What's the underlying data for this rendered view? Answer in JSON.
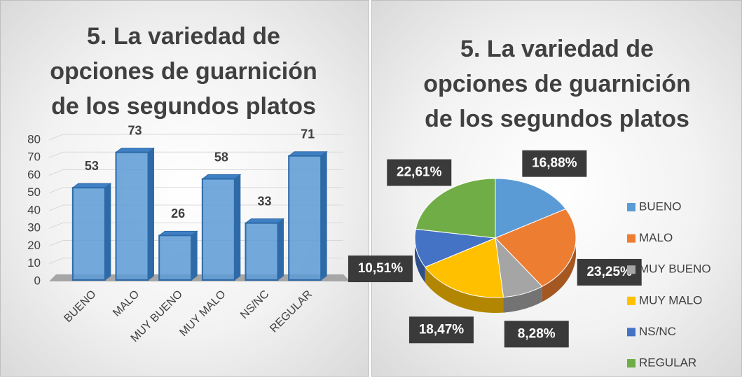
{
  "chart_data": [
    {
      "type": "bar",
      "title": "5. La variedad de opciones de guarnición de los segundos platos",
      "categories": [
        "BUENO",
        "MALO",
        "MUY BUENO",
        "MUY MALO",
        "NS/NC",
        "REGULAR"
      ],
      "values": [
        53,
        73,
        26,
        58,
        33,
        71
      ],
      "color": "#5b9bd5",
      "ylim": [
        0,
        80
      ],
      "yticks": [
        0,
        10,
        20,
        30,
        40,
        50,
        60,
        70,
        80
      ],
      "grid": true
    },
    {
      "type": "pie",
      "title": "5. La variedad de opciones de guarnición de los segundos platos",
      "categories": [
        "BUENO",
        "MALO",
        "MUY BUENO",
        "MUY MALO",
        "NS/NC",
        "REGULAR"
      ],
      "values": [
        16.88,
        23.25,
        8.28,
        18.47,
        10.51,
        22.61
      ],
      "value_labels": [
        "16,88%",
        "23,25%",
        "8,28%",
        "18,47%",
        "10,51%",
        "22,61%"
      ],
      "colors": [
        "#5b9bd5",
        "#ed7d31",
        "#a5a5a5",
        "#ffc000",
        "#4472c4",
        "#70ad47"
      ],
      "legend": "right"
    }
  ]
}
